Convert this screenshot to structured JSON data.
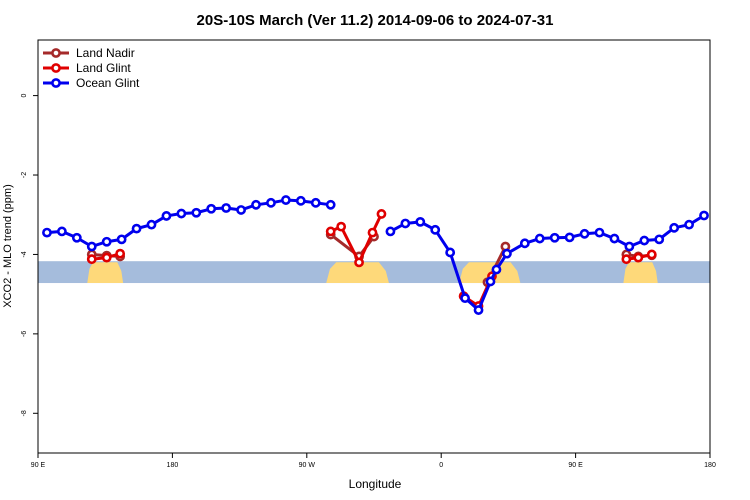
{
  "chart_data": {
    "type": "line",
    "title": "20S-10S March (Ver 11.2)   2014-09-06 to 2024-07-31",
    "xlabel": "Longitude",
    "ylabel": "XCO2 - MLO trend (ppm)",
    "xlim": [
      90,
      540
    ],
    "ylim": [
      -9.0,
      1.4
    ],
    "x_ticks": [
      {
        "value": 90,
        "label": "90 E"
      },
      {
        "value": 180,
        "label": "180"
      },
      {
        "value": 270,
        "label": "90 W"
      },
      {
        "value": 360,
        "label": "0"
      },
      {
        "value": 450,
        "label": "90 E"
      },
      {
        "value": 540,
        "label": "180"
      }
    ],
    "y_ticks": [
      {
        "value": 0,
        "label": "0"
      },
      {
        "value": -2,
        "label": "-2"
      },
      {
        "value": -4,
        "label": "-4"
      },
      {
        "value": -6,
        "label": "-6"
      },
      {
        "value": -8,
        "label": "-8"
      }
    ],
    "legend_position": "top-left",
    "background_band": {
      "y_range": [
        -4.17,
        -4.72
      ],
      "ocean_color": "#a5bcdc",
      "land_color": "#fed97a",
      "land_x_ranges": [
        [
          123,
          147
        ],
        [
          283,
          325
        ],
        [
          372,
          413
        ],
        [
          482,
          505
        ]
      ]
    },
    "series": [
      {
        "name": "Land Nadir",
        "color": "#a52a2a",
        "segments": [
          [
            [
              126,
              -4.0
            ],
            [
              136,
              -4.03
            ],
            [
              145,
              -4.05
            ]
          ],
          [
            [
              286,
              -3.5
            ],
            [
              305,
              -4.05
            ],
            [
              315,
              -3.55
            ]
          ],
          [
            [
              391,
              -4.7
            ],
            [
              403,
              -3.8
            ]
          ],
          [
            [
              484,
              -4.0
            ],
            [
              492,
              -4.05
            ],
            [
              501,
              -4.02
            ]
          ]
        ]
      },
      {
        "name": "Land Glint",
        "color": "#e00000",
        "segments": [
          [
            [
              126,
              -4.12
            ],
            [
              136,
              -4.08
            ],
            [
              145,
              -3.98
            ]
          ],
          [
            [
              286,
              -3.42
            ],
            [
              293,
              -3.3
            ],
            [
              305,
              -4.2
            ],
            [
              314,
              -3.45
            ],
            [
              320,
              -2.98
            ]
          ],
          [
            [
              375,
              -5.05
            ],
            [
              385,
              -5.3
            ],
            [
              394,
              -4.55
            ]
          ],
          [
            [
              484,
              -4.12
            ],
            [
              492,
              -4.08
            ],
            [
              501,
              -4.0
            ]
          ]
        ]
      },
      {
        "name": "Ocean Glint",
        "color": "#0000ee",
        "segments": [
          [
            [
              96,
              -3.45
            ],
            [
              106,
              -3.42
            ],
            [
              116,
              -3.58
            ],
            [
              126,
              -3.8
            ],
            [
              136,
              -3.68
            ],
            [
              146,
              -3.62
            ],
            [
              156,
              -3.35
            ],
            [
              166,
              -3.25
            ],
            [
              176,
              -3.03
            ],
            [
              186,
              -2.97
            ],
            [
              196,
              -2.95
            ],
            [
              206,
              -2.85
            ],
            [
              216,
              -2.83
            ],
            [
              226,
              -2.88
            ],
            [
              236,
              -2.75
            ],
            [
              246,
              -2.7
            ],
            [
              256,
              -2.63
            ],
            [
              266,
              -2.65
            ],
            [
              276,
              -2.7
            ],
            [
              286,
              -2.75
            ]
          ],
          [
            [
              326,
              -3.42
            ],
            [
              336,
              -3.22
            ],
            [
              346,
              -3.18
            ],
            [
              356,
              -3.38
            ],
            [
              366,
              -3.95
            ],
            [
              376,
              -5.1
            ],
            [
              385,
              -5.4
            ],
            [
              393,
              -4.68
            ],
            [
              397,
              -4.38
            ],
            [
              404,
              -3.98
            ],
            [
              416,
              -3.72
            ],
            [
              426,
              -3.6
            ],
            [
              436,
              -3.58
            ],
            [
              446,
              -3.57
            ],
            [
              456,
              -3.48
            ],
            [
              466,
              -3.45
            ],
            [
              476,
              -3.6
            ],
            [
              486,
              -3.8
            ],
            [
              496,
              -3.65
            ],
            [
              506,
              -3.62
            ],
            [
              516,
              -3.33
            ],
            [
              526,
              -3.25
            ],
            [
              536,
              -3.02
            ]
          ]
        ]
      }
    ]
  }
}
